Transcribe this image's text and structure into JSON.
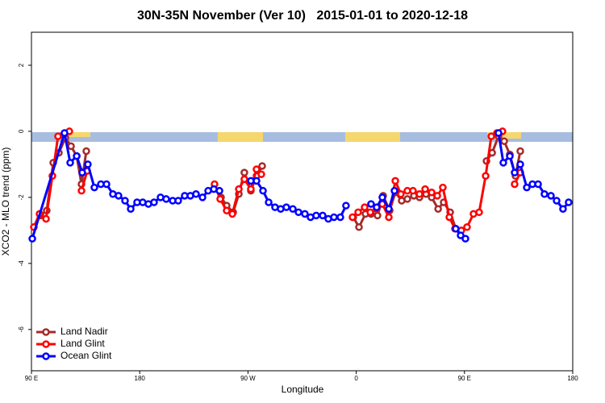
{
  "chart_data": {
    "type": "line",
    "title": "30N-35N November (Ver 10)   2015-01-01 to 2020-12-18",
    "xlabel": "Longitude",
    "ylabel": "XCO2 - MLO trend (ppm)",
    "xlim": [
      90,
      540
    ],
    "ylim": [
      -7.25,
      3
    ],
    "xticks": [
      {
        "value": 90,
        "label": "90 E"
      },
      180,
      {
        "value": 270,
        "label": "90 W"
      },
      {
        "value": 360,
        "label": "0"
      },
      {
        "value": 450,
        "label": "90 E"
      },
      {
        "value": 540,
        "label": "180"
      }
    ],
    "yticks": [
      2,
      0,
      -2,
      -4,
      -6
    ],
    "legend": "lower left",
    "series": [
      {
        "name": "Land Nadir",
        "color": "#a52a2a",
        "x": [
          97.4,
          102.7,
          108.1,
          112.8,
          118.2,
          122.9,
          127.6,
          131.6,
          135.6,
          null,
          247.6,
          252.3,
          257.7,
          262.4,
          267,
          272.4,
          277.1,
          281.8,
          null,
          357.6,
          362.3,
          367.7,
          372.3,
          377.7,
          382.4,
          387.8,
          392.5,
          397.8,
          402.5,
          407.9,
          412.6,
          418,
          422.7,
          428.1,
          432.7,
          438.1,
          442.8,
          null,
          468.3,
          473,
          478.3,
          483,
          487.7,
          492.4,
          496.4
        ],
        "values": [
          -2.55,
          -2.4,
          -0.95,
          -0.65,
          -0.2,
          -0.45,
          -0.75,
          -1.6,
          -0.6,
          null,
          -2.0,
          -2.25,
          -2.45,
          -1.9,
          -1.25,
          -1.8,
          -1.35,
          -1.05,
          null,
          -2.6,
          -2.9,
          -2.5,
          -2.5,
          -2.55,
          -1.95,
          -2.4,
          -1.85,
          -2.1,
          -2.05,
          -1.95,
          -2.0,
          -1.9,
          -2.0,
          -2.35,
          -2.15,
          -2.45,
          -2.95,
          null,
          -0.9,
          -0.65,
          -0.15,
          -0.3,
          -0.7,
          -1.35,
          -0.6
        ]
      },
      {
        "name": "Land Glint",
        "color": "#ff0000",
        "x": [
          92,
          96.7,
          102.1,
          107.4,
          112.1,
          116.8,
          121.5,
          null,
          131.6,
          136.3,
          null,
          242.2,
          246.9,
          252.3,
          257,
          262.4,
          267,
          272.4,
          277.1,
          281.1,
          null,
          356.9,
          361.6,
          367,
          371.7,
          377,
          381.7,
          387.1,
          392.5,
          397.1,
          402.5,
          407.2,
          412.6,
          417.3,
          422.7,
          427.4,
          432,
          437.4,
          442.1,
          447.4,
          452.1,
          457.5,
          462.2,
          467.6,
          472.3,
          477,
          481.6,
          null,
          491.7,
          496.4
        ],
        "values": [
          -2.9,
          -2.5,
          -2.65,
          -1.35,
          -0.15,
          -0.1,
          0.0,
          null,
          -1.8,
          -1.2,
          null,
          -1.6,
          -2.05,
          -2.4,
          -2.5,
          -1.75,
          -1.45,
          -1.75,
          -1.15,
          -1.3,
          null,
          -2.6,
          -2.45,
          -2.3,
          -2.45,
          -2.35,
          -2.2,
          -2.6,
          -1.5,
          -1.9,
          -1.8,
          -1.8,
          -1.9,
          -1.75,
          -1.85,
          -1.95,
          -1.7,
          -2.6,
          -2.95,
          -3.0,
          -2.9,
          -2.5,
          -2.45,
          -1.35,
          -0.15,
          -0.05,
          0.0,
          null,
          -1.6,
          -1.25
        ]
      },
      {
        "name": "Ocean Glint",
        "color": "#0000ff",
        "x": [
          90.7,
          117.5,
          122.2,
          127.6,
          132.2,
          136.9,
          142.3,
          147.7,
          152.4,
          157.7,
          162.4,
          167.8,
          172.5,
          177.8,
          182.5,
          187.2,
          191.9,
          197.3,
          202,
          207.4,
          212,
          217.4,
          222.1,
          226.8,
          232.2,
          236.9,
          241.6,
          246.3,
          null,
          272.4,
          277.1,
          282.5,
          287.2,
          292.5,
          297.2,
          301.9,
          307.3,
          312,
          317.3,
          322,
          326.7,
          332.1,
          336.8,
          341.5,
          346.8,
          351.5,
          null,
          372.3,
          377,
          381.7,
          387.1,
          391.8,
          null,
          442.7,
          446.8,
          450.8,
          null,
          478.3,
          482.3,
          487.7,
          491.7,
          496.4,
          501.8,
          506.5,
          511.2,
          516.5,
          521.9,
          526.6,
          531.9,
          536.6
        ],
        "values": [
          -3.25,
          -0.05,
          -0.95,
          -0.75,
          -1.25,
          -1.0,
          -1.7,
          -1.6,
          -1.6,
          -1.9,
          -1.95,
          -2.1,
          -2.35,
          -2.15,
          -2.15,
          -2.2,
          -2.15,
          -2.0,
          -2.05,
          -2.1,
          -2.1,
          -1.95,
          -1.95,
          -1.9,
          -2.0,
          -1.8,
          -1.75,
          -1.8,
          null,
          -1.5,
          -1.5,
          -1.8,
          -2.15,
          -2.3,
          -2.35,
          -2.3,
          -2.35,
          -2.45,
          -2.5,
          -2.6,
          -2.55,
          -2.55,
          -2.65,
          -2.6,
          -2.6,
          -2.25,
          null,
          -2.2,
          -2.3,
          -2.0,
          -2.35,
          -1.8,
          null,
          -2.95,
          -3.15,
          -3.25,
          null,
          -0.05,
          -0.95,
          -0.75,
          -1.25,
          -1.0,
          -1.7,
          -1.6,
          -1.6,
          -1.9,
          -1.95,
          -2.1,
          -2.35,
          -2.15
        ]
      }
    ]
  }
}
